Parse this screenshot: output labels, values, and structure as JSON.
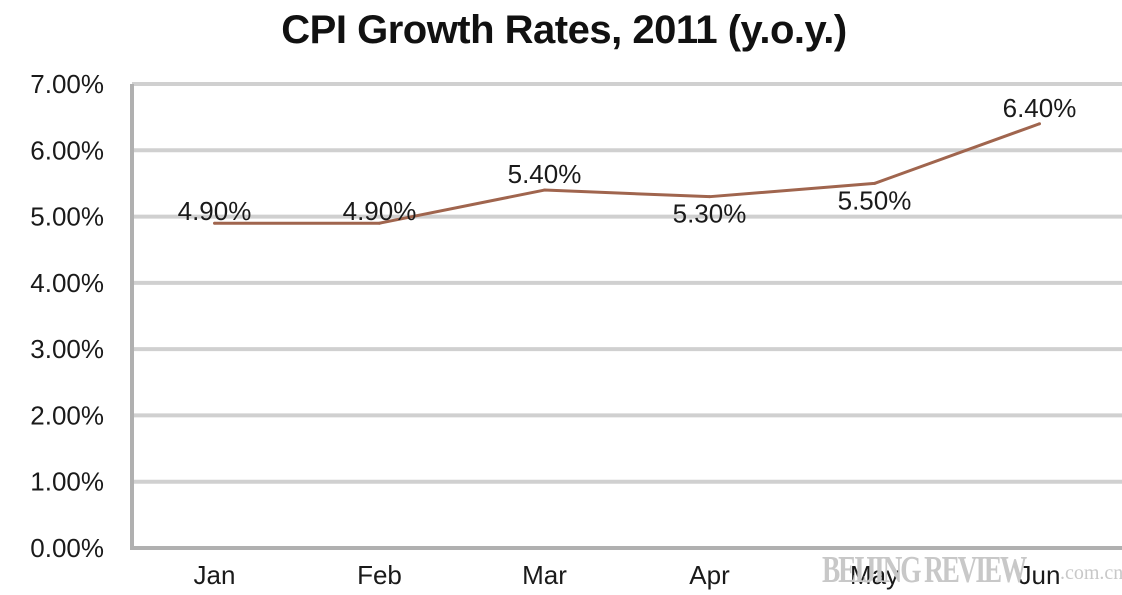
{
  "chart_data": {
    "type": "line",
    "title": "CPI Growth Rates, 2011 (y.o.y.)",
    "categories": [
      "Jan",
      "Feb",
      "Mar",
      "Apr",
      "May",
      "Jun"
    ],
    "series": [
      {
        "values": [
          4.9,
          4.9,
          5.4,
          5.3,
          5.5,
          6.4
        ],
        "data_labels": [
          "4.90%",
          "4.90%",
          "5.40%",
          "5.30%",
          "5.50%",
          "6.40%"
        ],
        "color": "#a0654e"
      }
    ],
    "ylim": [
      0,
      7
    ],
    "y_ticks": [
      0,
      1,
      2,
      3,
      4,
      5,
      6,
      7
    ],
    "y_tick_labels": [
      "0.00%",
      "1.00%",
      "2.00%",
      "3.00%",
      "4.00%",
      "5.00%",
      "6.00%",
      "7.00%"
    ],
    "grid": true,
    "grid_color": "#d0d0d0",
    "axis_color": "#b0b0b0",
    "xlabel": "",
    "ylabel": ""
  },
  "watermark": {
    "main": "BEIJING REVIEW",
    "suffix": ".com.cn"
  }
}
